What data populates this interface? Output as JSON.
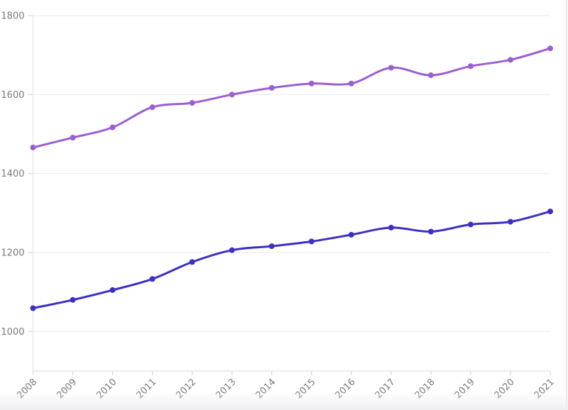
{
  "page": {
    "background": "#ffffff",
    "right_border_color": "#e8e6ec"
  },
  "chart_data": {
    "type": "line",
    "x": [
      "2008",
      "2009",
      "2010",
      "2011",
      "2012",
      "2013",
      "2014",
      "2015",
      "2016",
      "2017",
      "2018",
      "2019",
      "2020",
      "2021"
    ],
    "series": [
      {
        "name": "upper-purple-series",
        "color": "#9b5fd3",
        "values": [
          1466,
          1491,
          1517,
          1568,
          1579,
          1600,
          1617,
          1628,
          1628,
          1668,
          1649,
          1672,
          1688,
          1717
        ]
      },
      {
        "name": "lower-indigo-series",
        "color": "#3d2ec6",
        "values": [
          1059,
          1080,
          1105,
          1133,
          1176,
          1206,
          1216,
          1228,
          1245,
          1263,
          1253,
          1271,
          1278,
          1304
        ]
      }
    ],
    "title": "",
    "xlabel": "",
    "ylabel": "",
    "ylim": [
      900,
      1800
    ],
    "yticks": [
      "1000",
      "1200",
      "1400",
      "1600",
      "1800"
    ],
    "grid": "horizontal",
    "legend": "none",
    "style": {
      "grid_color": "#ededf0",
      "axis_color": "#e4e3e7",
      "tick_color": "#dad9de",
      "label_color": "#7a787e",
      "label_font_size": 13,
      "line_width": 3,
      "marker_radius": 4
    }
  }
}
